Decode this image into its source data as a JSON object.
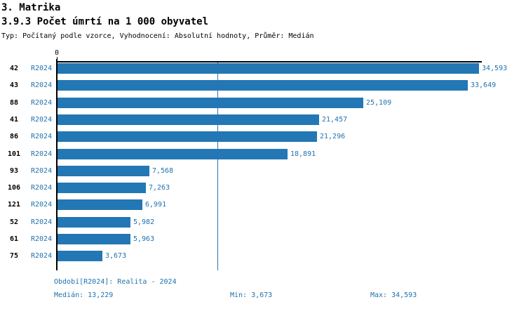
{
  "header": {
    "title1": "3. Matrika",
    "title2": "3.9.3 Počet úmrtí na 1 000 obyvatel",
    "subtitle": "Typ: Počítaný podle vzorce, Vyhodnocení: Absolutní hodnoty, Průměr: Medián"
  },
  "axis": {
    "zero_label": "0"
  },
  "chart_data": {
    "type": "bar",
    "orientation": "horizontal",
    "title": "3.9.3 Počet úmrtí na 1 000 obyvatel",
    "xlabel": "",
    "ylabel": "",
    "xlim": [
      0,
      34800
    ],
    "grid": false,
    "legend": false,
    "categories": [
      "42",
      "43",
      "88",
      "41",
      "86",
      "101",
      "93",
      "106",
      "121",
      "52",
      "61",
      "75"
    ],
    "period": "R2024",
    "values": [
      34593,
      33649,
      25109,
      21457,
      21296,
      18891,
      7568,
      7263,
      6991,
      5982,
      5963,
      3673
    ],
    "value_labels": [
      "34,593",
      "33,649",
      "25,109",
      "21,457",
      "21,296",
      "18,891",
      "7,568",
      "7,263",
      "6,991",
      "5,982",
      "5,963",
      "3,673"
    ],
    "median": 13229,
    "min": 3673,
    "max": 34593,
    "median_line_shown": true
  },
  "footer": {
    "period_line": "Období[R2024]: Realita - 2024",
    "median_label": "Medián: 13,229",
    "min_label": "Min: 3,673",
    "max_label": "Max: 34,593"
  },
  "colors": {
    "bar": "#2377B4",
    "blue_text": "#2072AE",
    "median_line": "#2E75AF",
    "axis": "#000000"
  }
}
